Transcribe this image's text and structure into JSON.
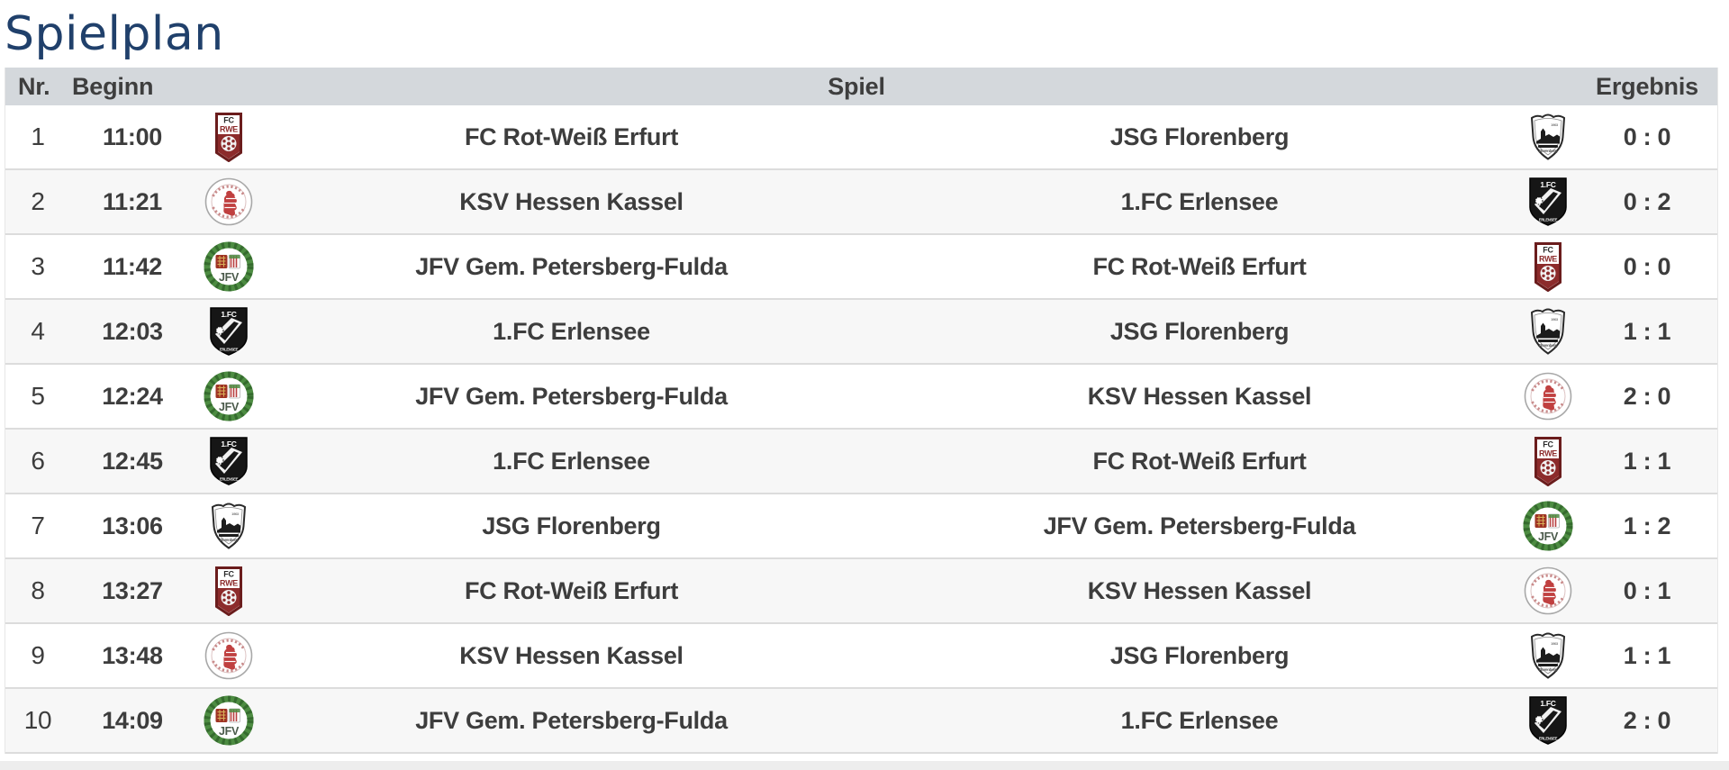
{
  "page": {
    "title": "Spielplan"
  },
  "colors": {
    "title_text": "#20406b",
    "header_bg": "#d4d8dc",
    "header_text": "#3e3e3e",
    "row_text": "#3d3d3d",
    "row_alt_bg": "#f7f7f7",
    "row_border": "#dcdcdc",
    "bottom_strip_bg": "#ededed"
  },
  "table": {
    "headers": {
      "nr": "Nr.",
      "beginn": "Beginn",
      "spiel": "Spiel",
      "ergebnis": "Ergebnis"
    },
    "teams": [
      {
        "id": "fc-rot-weiss-erfurt",
        "name": "FC Rot-Weiß Erfurt"
      },
      {
        "id": "ksv-hessen-kassel",
        "name": "KSV Hessen Kassel"
      },
      {
        "id": "jfv-gem-petersberg-fulda",
        "name": "JFV Gem. Petersberg-Fulda"
      },
      {
        "id": "jsg-florenberg",
        "name": "JSG Florenberg"
      },
      {
        "id": "1-fc-erlensee",
        "name": "1.FC Erlensee"
      }
    ],
    "rows": [
      {
        "nr": "1",
        "time": "11:00",
        "home": "FC Rot-Weiß Erfurt",
        "home_logo": "fc-rot-weiss-erfurt",
        "away": "JSG Florenberg",
        "away_logo": "jsg-florenberg",
        "score": "0 : 0"
      },
      {
        "nr": "2",
        "time": "11:21",
        "home": "KSV Hessen Kassel",
        "home_logo": "ksv-hessen-kassel",
        "away": "1.FC Erlensee",
        "away_logo": "1-fc-erlensee",
        "score": "0 : 2"
      },
      {
        "nr": "3",
        "time": "11:42",
        "home": "JFV Gem. Petersberg-Fulda",
        "home_logo": "jfv-gem-petersberg-fulda",
        "away": "FC Rot-Weiß Erfurt",
        "away_logo": "fc-rot-weiss-erfurt",
        "score": "0 : 0"
      },
      {
        "nr": "4",
        "time": "12:03",
        "home": "1.FC Erlensee",
        "home_logo": "1-fc-erlensee",
        "away": "JSG Florenberg",
        "away_logo": "jsg-florenberg",
        "score": "1 : 1"
      },
      {
        "nr": "5",
        "time": "12:24",
        "home": "JFV Gem. Petersberg-Fulda",
        "home_logo": "jfv-gem-petersberg-fulda",
        "away": "KSV Hessen Kassel",
        "away_logo": "ksv-hessen-kassel",
        "score": "2 : 0"
      },
      {
        "nr": "6",
        "time": "12:45",
        "home": "1.FC Erlensee",
        "home_logo": "1-fc-erlensee",
        "away": "FC Rot-Weiß Erfurt",
        "away_logo": "fc-rot-weiss-erfurt",
        "score": "1 : 1"
      },
      {
        "nr": "7",
        "time": "13:06",
        "home": "JSG Florenberg",
        "home_logo": "jsg-florenberg",
        "away": "JFV Gem. Petersberg-Fulda",
        "away_logo": "jfv-gem-petersberg-fulda",
        "score": "1 : 2"
      },
      {
        "nr": "8",
        "time": "13:27",
        "home": "FC Rot-Weiß Erfurt",
        "home_logo": "fc-rot-weiss-erfurt",
        "away": "KSV Hessen Kassel",
        "away_logo": "ksv-hessen-kassel",
        "score": "0 : 1"
      },
      {
        "nr": "9",
        "time": "13:48",
        "home": "KSV Hessen Kassel",
        "home_logo": "ksv-hessen-kassel",
        "away": "JSG Florenberg",
        "away_logo": "jsg-florenberg",
        "score": "1 : 1"
      },
      {
        "nr": "10",
        "time": "14:09",
        "home": "JFV Gem. Petersberg-Fulda",
        "home_logo": "jfv-gem-petersberg-fulda",
        "away": "1.FC Erlensee",
        "away_logo": "1-fc-erlensee",
        "score": "2 : 0"
      }
    ]
  }
}
